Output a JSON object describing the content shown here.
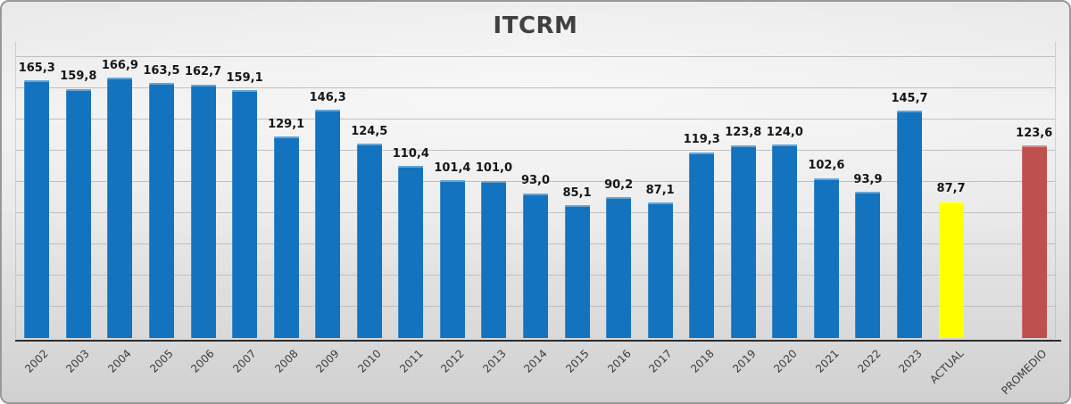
{
  "chart_data": {
    "type": "bar",
    "title": "ITCRM",
    "categories": [
      "2002",
      "2003",
      "2004",
      "2005",
      "2006",
      "2007",
      "2008",
      "2009",
      "2010",
      "2011",
      "2012",
      "2013",
      "2014",
      "2015",
      "2016",
      "2017",
      "2018",
      "2019",
      "2020",
      "2021",
      "2022",
      "2023",
      "ACTUAL",
      "PROMEDIO"
    ],
    "values": [
      165.3,
      159.8,
      166.9,
      163.5,
      162.7,
      159.1,
      129.1,
      146.3,
      124.5,
      110.4,
      101.4,
      101.0,
      93.0,
      85.1,
      90.2,
      87.1,
      119.3,
      123.8,
      124.0,
      102.6,
      93.9,
      145.7,
      87.7,
      123.6
    ],
    "value_labels": [
      "165,3",
      "159,8",
      "166,9",
      "163,5",
      "162,7",
      "159,1",
      "129,1",
      "146,3",
      "124,5",
      "110,4",
      "101,4",
      "101,0",
      "93,0",
      "85,1",
      "90,2",
      "87,1",
      "119,3",
      "123,8",
      "124,0",
      "102,6",
      "93,9",
      "145,7",
      "87,7",
      "123,6"
    ],
    "xlabel": "",
    "ylabel": "",
    "ylim": [
      0,
      190
    ],
    "grid": true,
    "grid_step": 20,
    "legend": "none",
    "x_label_rotation": -45,
    "gap_before_last_bar": true,
    "colors": {
      "default": "#1473be",
      "ACTUAL": "#ffff00",
      "PROMEDIO": "#c0504d"
    }
  }
}
